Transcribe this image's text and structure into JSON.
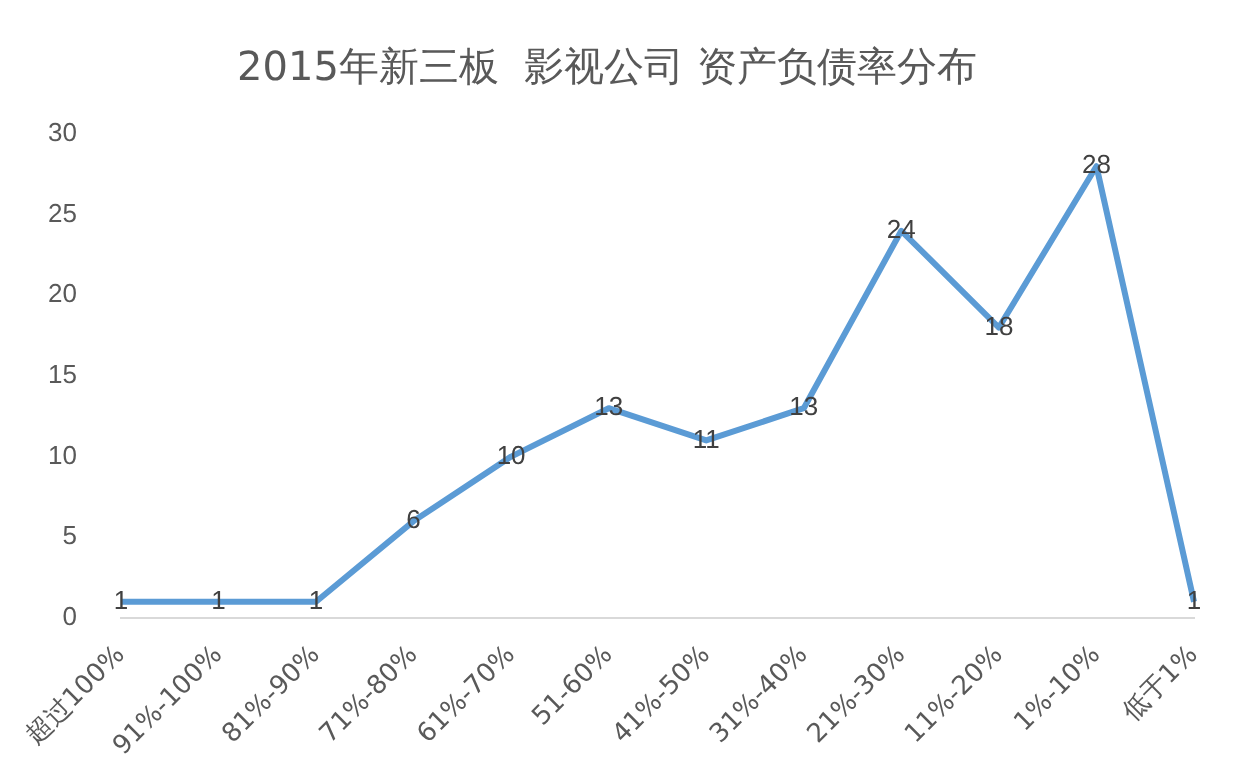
{
  "chart_data": {
    "type": "line",
    "title": "2015年新三板  影视公司 资产负债率分布",
    "categories": [
      "超过100%",
      "91%-100%",
      "81%-90%",
      "71%-80%",
      "61%-70%",
      "51-60%",
      "41%-50%",
      "31%-40%",
      "21%-30%",
      "11%-20%",
      "1%-10%",
      "低于1%"
    ],
    "series": [
      {
        "color": "#5b9bd5",
        "values": [
          1,
          1,
          1,
          6,
          10,
          13,
          11,
          13,
          24,
          18,
          28,
          1
        ]
      }
    ],
    "ylim": [
      0,
      30
    ],
    "yticks": [
      0,
      5,
      10,
      15,
      20,
      25,
      30
    ],
    "grid": false,
    "legend": false,
    "marker": "none",
    "line_style": "solid",
    "data_labels": true
  }
}
